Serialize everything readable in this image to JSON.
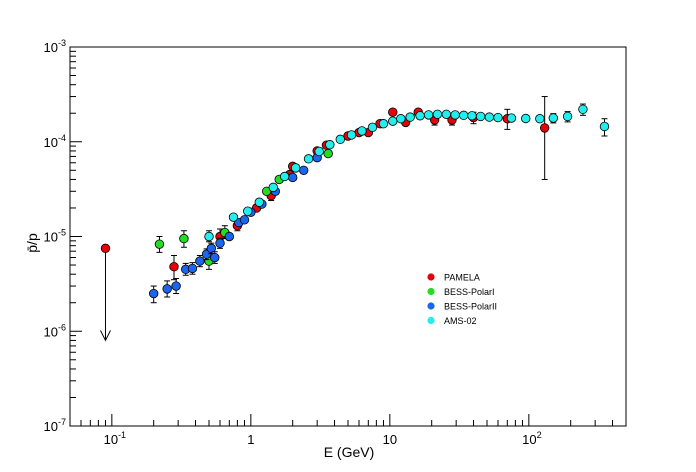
{
  "chart_data": {
    "type": "scatter",
    "title": "",
    "xlabel": "E (GeV)",
    "ylabel": "p̄/p",
    "xscale": "log",
    "yscale": "log",
    "xlim": [
      0.05,
      500
    ],
    "ylim": [
      1e-07,
      0.001
    ],
    "x_ticks": [
      {
        "value": 0.1,
        "base": "10",
        "exp": "-1"
      },
      {
        "value": 1,
        "base": "1",
        "exp": ""
      },
      {
        "value": 10,
        "base": "10",
        "exp": ""
      },
      {
        "value": 100,
        "base": "10",
        "exp": "2"
      }
    ],
    "y_ticks": [
      {
        "value": 1e-07,
        "base": "10",
        "exp": "-7"
      },
      {
        "value": 1e-06,
        "base": "10",
        "exp": "-6"
      },
      {
        "value": 1e-05,
        "base": "10",
        "exp": "-5"
      },
      {
        "value": 0.0001,
        "base": "10",
        "exp": "-4"
      },
      {
        "value": 0.001,
        "base": "10",
        "exp": "-3"
      }
    ],
    "legend_position": "lower-right",
    "upper_limit": {
      "x": 0.09,
      "y": 7.5e-06,
      "to": 8e-07
    },
    "series": [
      {
        "name": "PAMELA",
        "color": "#e8000b",
        "points": [
          {
            "x": 0.28,
            "y": 4.8e-06,
            "lo": 3.5e-06,
            "hi": 6.3e-06
          },
          {
            "x": 0.6,
            "y": 1e-05,
            "lo": 8.5e-06,
            "hi": 1.2e-05
          },
          {
            "x": 0.8,
            "y": 1.3e-05,
            "lo": 1.15e-05,
            "hi": 1.45e-05
          },
          {
            "x": 1.1,
            "y": 2e-05,
            "lo": 1.8e-05,
            "hi": 2.2e-05
          },
          {
            "x": 1.4,
            "y": 2.7e-05,
            "lo": 2.4e-05,
            "hi": 3e-05
          },
          {
            "x": 1.9,
            "y": 4.5e-05,
            "lo": 4.1e-05,
            "hi": 4.9e-05
          },
          {
            "x": 2.0,
            "y": 5.5e-05,
            "lo": 5e-05,
            "hi": 6e-05
          },
          {
            "x": 3.0,
            "y": 8e-05,
            "lo": 7.4e-05,
            "hi": 8.6e-05
          },
          {
            "x": 3.5,
            "y": 9.2e-05,
            "lo": 8.5e-05,
            "hi": 9.9e-05
          },
          {
            "x": 5.0,
            "y": 0.000115,
            "lo": 0.000107,
            "hi": 0.000123
          },
          {
            "x": 6.0,
            "y": 0.000125,
            "lo": 0.000116,
            "hi": 0.000134
          },
          {
            "x": 7.0,
            "y": 0.000125,
            "lo": 0.000116,
            "hi": 0.000134
          },
          {
            "x": 8.5,
            "y": 0.000155,
            "lo": 0.000144,
            "hi": 0.000166
          },
          {
            "x": 10.5,
            "y": 0.000205,
            "lo": 0.00019,
            "hi": 0.00022
          },
          {
            "x": 13.0,
            "y": 0.00016,
            "lo": 0.000145,
            "hi": 0.000175
          },
          {
            "x": 16.0,
            "y": 0.000205,
            "lo": 0.00019,
            "hi": 0.00022
          },
          {
            "x": 21.0,
            "y": 0.00017,
            "lo": 0.00015,
            "hi": 0.00019
          },
          {
            "x": 28.0,
            "y": 0.00017,
            "lo": 0.00015,
            "hi": 0.00019
          },
          {
            "x": 40.0,
            "y": 0.00018,
            "lo": 0.000155,
            "hi": 0.000205
          },
          {
            "x": 70.0,
            "y": 0.000175,
            "lo": 0.000135,
            "hi": 0.00022
          },
          {
            "x": 130.0,
            "y": 0.00014,
            "lo": 4e-05,
            "hi": 0.0003
          }
        ]
      },
      {
        "name": "BESS-PolarI",
        "color": "#22dd22",
        "points": [
          {
            "x": 0.22,
            "y": 8.3e-06,
            "lo": 6.8e-06,
            "hi": 1e-05
          },
          {
            "x": 0.33,
            "y": 9.5e-06,
            "lo": 7.7e-06,
            "hi": 1.15e-05
          },
          {
            "x": 0.5,
            "y": 5.5e-06,
            "lo": 4.5e-06,
            "hi": 6.7e-06
          },
          {
            "x": 0.65,
            "y": 1.1e-05,
            "lo": 9.5e-06,
            "hi": 1.3e-05
          },
          {
            "x": 1.3,
            "y": 3e-05,
            "lo": 2.7e-05,
            "hi": 3.3e-05
          },
          {
            "x": 1.6,
            "y": 4e-05,
            "lo": 3.6e-05,
            "hi": 4.4e-05
          },
          {
            "x": 3.6,
            "y": 7.5e-05,
            "lo": 6.9e-05,
            "hi": 8.1e-05
          }
        ]
      },
      {
        "name": "BESS-PolarII",
        "color": "#1a66ee",
        "points": [
          {
            "x": 0.2,
            "y": 2.5e-06,
            "lo": 2e-06,
            "hi": 3e-06
          },
          {
            "x": 0.25,
            "y": 2.8e-06,
            "lo": 2.3e-06,
            "hi": 3.4e-06
          },
          {
            "x": 0.29,
            "y": 3e-06,
            "lo": 2.5e-06,
            "hi": 3.6e-06
          },
          {
            "x": 0.34,
            "y": 4.5e-06,
            "lo": 3.9e-06,
            "hi": 5.2e-06
          },
          {
            "x": 0.38,
            "y": 4.6e-06,
            "lo": 4e-06,
            "hi": 5.3e-06
          },
          {
            "x": 0.43,
            "y": 5.5e-06,
            "lo": 4.8e-06,
            "hi": 6.3e-06
          },
          {
            "x": 0.48,
            "y": 6.5e-06,
            "lo": 5.7e-06,
            "hi": 7.4e-06
          },
          {
            "x": 0.52,
            "y": 7.5e-06,
            "lo": 6.6e-06,
            "hi": 8.5e-06
          },
          {
            "x": 0.55,
            "y": 6e-06,
            "lo": 5.2e-06,
            "hi": 6.9e-06
          },
          {
            "x": 0.6,
            "y": 8.5e-06,
            "lo": 7.5e-06,
            "hi": 9.6e-06
          },
          {
            "x": 0.7,
            "y": 1e-05,
            "lo": 9e-06,
            "hi": 1.12e-05
          },
          {
            "x": 0.82,
            "y": 1.4e-05,
            "lo": 1.27e-05,
            "hi": 1.55e-05
          },
          {
            "x": 0.9,
            "y": 1.5e-05,
            "lo": 1.37e-05,
            "hi": 1.65e-05
          },
          {
            "x": 1.0,
            "y": 1.8e-05,
            "lo": 1.65e-05,
            "hi": 1.96e-05
          },
          {
            "x": 1.2,
            "y": 2.2e-05,
            "lo": 2.03e-05,
            "hi": 2.39e-05
          },
          {
            "x": 1.5,
            "y": 3e-05,
            "lo": 2.78e-05,
            "hi": 3.24e-05
          },
          {
            "x": 2.0,
            "y": 4.2e-05,
            "lo": 3.9e-05,
            "hi": 4.5e-05
          },
          {
            "x": 2.4,
            "y": 5e-05,
            "lo": 4.65e-05,
            "hi": 5.4e-05
          },
          {
            "x": 3.0,
            "y": 6.8e-05,
            "lo": 6.35e-05,
            "hi": 7.3e-05
          }
        ]
      },
      {
        "name": "AMS-02",
        "color": "#22eeee",
        "points": [
          {
            "x": 0.5,
            "y": 1e-05,
            "lo": 8.8e-06,
            "hi": 1.15e-05
          },
          {
            "x": 0.75,
            "y": 1.6e-05,
            "lo": 1.45e-05,
            "hi": 1.75e-05
          },
          {
            "x": 0.95,
            "y": 1.85e-05,
            "lo": 1.7e-05,
            "hi": 2e-05
          },
          {
            "x": 1.15,
            "y": 2.3e-05,
            "lo": 2.15e-05,
            "hi": 2.45e-05
          },
          {
            "x": 1.45,
            "y": 3.3e-05,
            "lo": 3.1e-05,
            "hi": 3.5e-05
          },
          {
            "x": 1.75,
            "y": 4.3e-05,
            "lo": 4.05e-05,
            "hi": 4.55e-05
          },
          {
            "x": 2.1,
            "y": 5.3e-05,
            "lo": 5e-05,
            "hi": 5.6e-05
          },
          {
            "x": 2.6,
            "y": 6.6e-05,
            "lo": 6.25e-05,
            "hi": 6.95e-05
          },
          {
            "x": 3.1,
            "y": 7.9e-05,
            "lo": 7.5e-05,
            "hi": 8.3e-05
          },
          {
            "x": 3.7,
            "y": 9.3e-05,
            "lo": 8.85e-05,
            "hi": 9.75e-05
          },
          {
            "x": 4.4,
            "y": 0.000106,
            "lo": 0.000101,
            "hi": 0.000111
          },
          {
            "x": 5.3,
            "y": 0.000118,
            "lo": 0.000113,
            "hi": 0.000123
          },
          {
            "x": 6.3,
            "y": 0.00013,
            "lo": 0.000125,
            "hi": 0.000135
          },
          {
            "x": 7.5,
            "y": 0.000142,
            "lo": 0.000137,
            "hi": 0.000147
          },
          {
            "x": 9.0,
            "y": 0.000155,
            "lo": 0.00015,
            "hi": 0.00016
          },
          {
            "x": 10.5,
            "y": 0.000165,
            "lo": 0.00016,
            "hi": 0.00017
          },
          {
            "x": 12.0,
            "y": 0.000175,
            "lo": 0.00017,
            "hi": 0.00018
          },
          {
            "x": 14.0,
            "y": 0.000182,
            "lo": 0.000177,
            "hi": 0.000187
          },
          {
            "x": 16.5,
            "y": 0.000188,
            "lo": 0.000182,
            "hi": 0.000194
          },
          {
            "x": 19.0,
            "y": 0.000192,
            "lo": 0.000186,
            "hi": 0.000198
          },
          {
            "x": 22.0,
            "y": 0.000195,
            "lo": 0.000189,
            "hi": 0.000201
          },
          {
            "x": 25.5,
            "y": 0.000195,
            "lo": 0.000189,
            "hi": 0.000201
          },
          {
            "x": 29.5,
            "y": 0.000192,
            "lo": 0.000185,
            "hi": 0.000199
          },
          {
            "x": 34.0,
            "y": 0.00019,
            "lo": 0.000183,
            "hi": 0.000197
          },
          {
            "x": 39.0,
            "y": 0.000188,
            "lo": 0.00018,
            "hi": 0.000196
          },
          {
            "x": 45.0,
            "y": 0.000185,
            "lo": 0.000177,
            "hi": 0.000193
          },
          {
            "x": 52.0,
            "y": 0.000182,
            "lo": 0.000173,
            "hi": 0.000191
          },
          {
            "x": 60.0,
            "y": 0.00018,
            "lo": 0.00017,
            "hi": 0.00019
          },
          {
            "x": 75.0,
            "y": 0.000178,
            "lo": 0.000166,
            "hi": 0.00019
          },
          {
            "x": 95.0,
            "y": 0.000176,
            "lo": 0.000162,
            "hi": 0.00019
          },
          {
            "x": 120.0,
            "y": 0.000175,
            "lo": 0.000158,
            "hi": 0.000192
          },
          {
            "x": 150.0,
            "y": 0.000178,
            "lo": 0.000158,
            "hi": 0.000198
          },
          {
            "x": 190.0,
            "y": 0.000185,
            "lo": 0.000162,
            "hi": 0.000208
          },
          {
            "x": 245.0,
            "y": 0.00022,
            "lo": 0.00019,
            "hi": 0.00025
          },
          {
            "x": 350.0,
            "y": 0.000145,
            "lo": 0.000115,
            "hi": 0.000175
          }
        ]
      }
    ]
  }
}
